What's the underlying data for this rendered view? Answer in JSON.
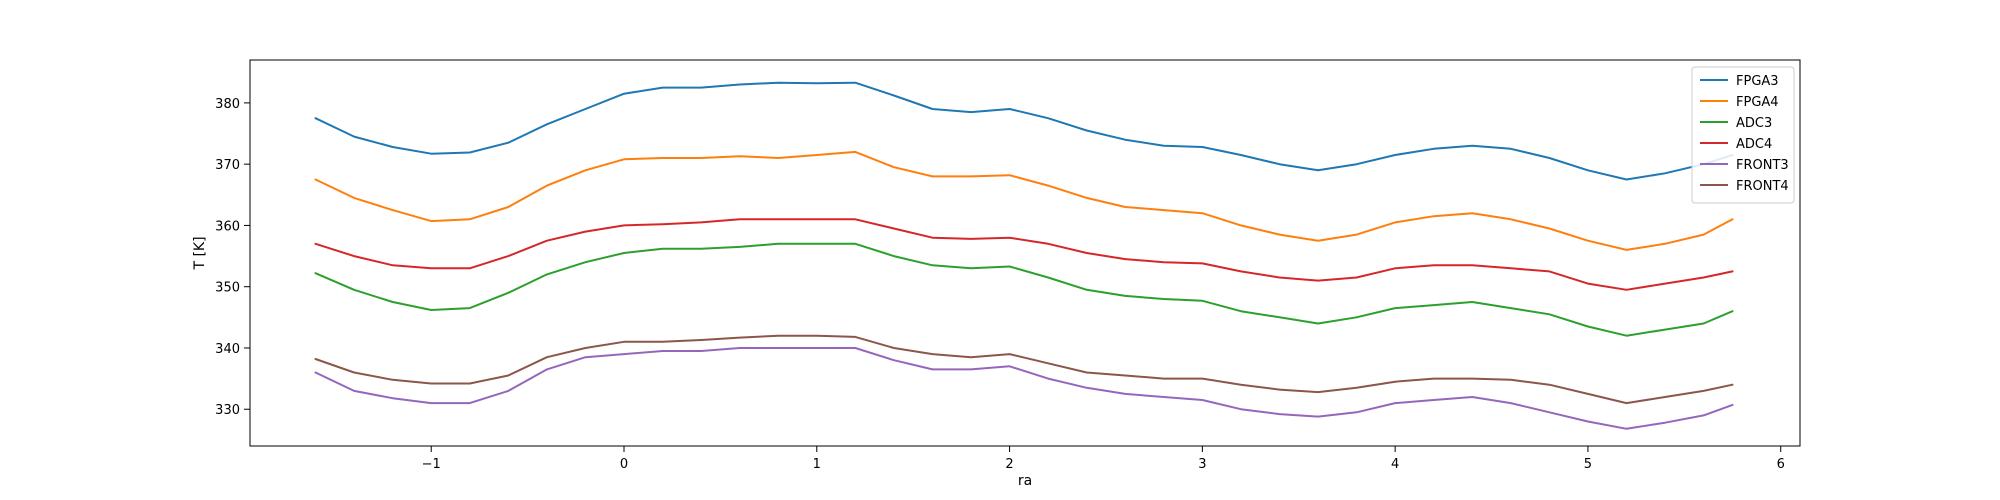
{
  "chart_data": {
    "type": "line",
    "title": "",
    "xlabel": "ra",
    "ylabel": "T [K]",
    "xlim": [
      -1.94,
      6.1
    ],
    "ylim": [
      324,
      387
    ],
    "xticks": [
      -1,
      0,
      1,
      2,
      3,
      4,
      5,
      6
    ],
    "xtick_labels": [
      "−1",
      "0",
      "1",
      "2",
      "3",
      "4",
      "5",
      "6"
    ],
    "yticks": [
      330,
      340,
      350,
      360,
      370,
      380
    ],
    "ytick_labels": [
      "330",
      "340",
      "350",
      "360",
      "370",
      "380"
    ],
    "grid": false,
    "legend_position": "top-right",
    "x": [
      -1.6,
      -1.4,
      -1.2,
      -1.0,
      -0.8,
      -0.6,
      -0.4,
      -0.2,
      0.0,
      0.2,
      0.4,
      0.6,
      0.8,
      1.0,
      1.2,
      1.4,
      1.6,
      1.8,
      2.0,
      2.2,
      2.4,
      2.6,
      2.8,
      3.0,
      3.2,
      3.4,
      3.6,
      3.8,
      4.0,
      4.2,
      4.4,
      4.6,
      4.8,
      5.0,
      5.2,
      5.4,
      5.6,
      5.75
    ],
    "series": [
      {
        "name": "FPGA3",
        "color": "#1f77b4",
        "values": [
          377.5,
          374.5,
          372.8,
          371.7,
          371.9,
          373.5,
          376.5,
          379.0,
          381.5,
          382.5,
          382.5,
          383.0,
          383.3,
          383.2,
          383.3,
          381.2,
          379.0,
          378.5,
          379.0,
          377.5,
          375.5,
          374.0,
          373.0,
          372.8,
          371.5,
          370.0,
          369.0,
          370.0,
          371.5,
          372.5,
          373.0,
          372.5,
          371.0,
          369.0,
          367.5,
          368.5,
          370.0,
          371.5
        ]
      },
      {
        "name": "FPGA4",
        "color": "#ff7f0e",
        "values": [
          367.5,
          364.5,
          362.5,
          360.7,
          361.0,
          363.0,
          366.5,
          369.0,
          370.8,
          371.0,
          371.0,
          371.3,
          371.0,
          371.5,
          372.0,
          369.5,
          368.0,
          368.0,
          368.2,
          366.5,
          364.5,
          363.0,
          362.5,
          362.0,
          360.0,
          358.5,
          357.5,
          358.5,
          360.5,
          361.5,
          362.0,
          361.0,
          359.5,
          357.5,
          356.0,
          357.0,
          358.5,
          361.0
        ]
      },
      {
        "name": "ADC3",
        "color": "#2ca02c",
        "values": [
          352.2,
          349.5,
          347.5,
          346.2,
          346.5,
          349.0,
          352.0,
          354.0,
          355.5,
          356.2,
          356.2,
          356.5,
          357.0,
          357.0,
          357.0,
          355.0,
          353.5,
          353.0,
          353.3,
          351.5,
          349.5,
          348.5,
          348.0,
          347.7,
          346.0,
          345.0,
          344.0,
          345.0,
          346.5,
          347.0,
          347.5,
          346.5,
          345.5,
          343.5,
          342.0,
          343.0,
          344.0,
          346.0
        ]
      },
      {
        "name": "ADC4",
        "color": "#d62728",
        "values": [
          357.0,
          355.0,
          353.5,
          353.0,
          353.0,
          355.0,
          357.5,
          359.0,
          360.0,
          360.2,
          360.5,
          361.0,
          361.0,
          361.0,
          361.0,
          359.5,
          358.0,
          357.8,
          358.0,
          357.0,
          355.5,
          354.5,
          354.0,
          353.8,
          352.5,
          351.5,
          351.0,
          351.5,
          353.0,
          353.5,
          353.5,
          353.0,
          352.5,
          350.5,
          349.5,
          350.5,
          351.5,
          352.5
        ]
      },
      {
        "name": "FRONT3",
        "color": "#9467bd",
        "values": [
          336.0,
          333.0,
          331.8,
          331.0,
          331.0,
          333.0,
          336.5,
          338.5,
          339.0,
          339.5,
          339.5,
          340.0,
          340.0,
          340.0,
          340.0,
          338.0,
          336.5,
          336.5,
          337.0,
          335.0,
          333.5,
          332.5,
          332.0,
          331.5,
          330.0,
          329.2,
          328.8,
          329.5,
          331.0,
          331.5,
          332.0,
          331.0,
          329.5,
          328.0,
          326.8,
          327.8,
          329.0,
          330.7
        ]
      },
      {
        "name": "FRONT4",
        "color": "#8c564b",
        "values": [
          338.2,
          336.0,
          334.8,
          334.2,
          334.2,
          335.5,
          338.5,
          340.0,
          341.0,
          341.0,
          341.3,
          341.7,
          342.0,
          342.0,
          341.8,
          340.0,
          339.0,
          338.5,
          339.0,
          337.5,
          336.0,
          335.5,
          335.0,
          335.0,
          334.0,
          333.2,
          332.8,
          333.5,
          334.5,
          335.0,
          335.0,
          334.8,
          334.0,
          332.5,
          331.0,
          332.0,
          333.0,
          334.0
        ]
      }
    ]
  }
}
